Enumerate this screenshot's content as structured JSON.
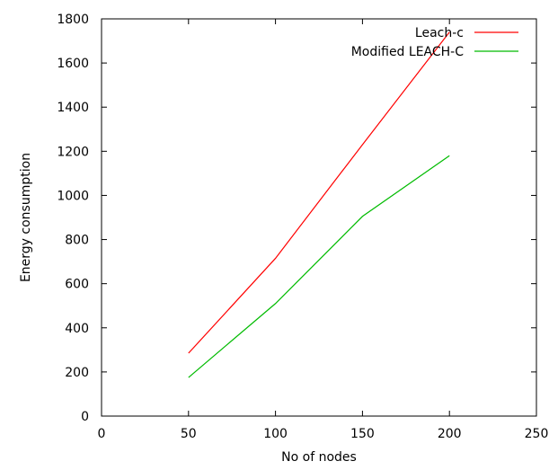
{
  "chart_data": {
    "type": "line",
    "title": "",
    "xlabel": "No of nodes",
    "ylabel": "Energy consumption",
    "xlim": [
      0,
      250
    ],
    "ylim": [
      0,
      1800
    ],
    "xticks": [
      0,
      50,
      100,
      150,
      200,
      250
    ],
    "yticks": [
      0,
      200,
      400,
      600,
      800,
      1000,
      1200,
      1400,
      1600,
      1800
    ],
    "grid": false,
    "legend_position": "top-right",
    "series": [
      {
        "name": "Leach-c",
        "color": "#ff0000",
        "x": [
          50,
          100,
          150,
          200
        ],
        "y": [
          285,
          715,
          1230,
          1740
        ]
      },
      {
        "name": "Modified LEACH-C",
        "color": "#00bb00",
        "x": [
          50,
          100,
          150,
          200
        ],
        "y": [
          175,
          510,
          905,
          1180
        ]
      }
    ]
  }
}
